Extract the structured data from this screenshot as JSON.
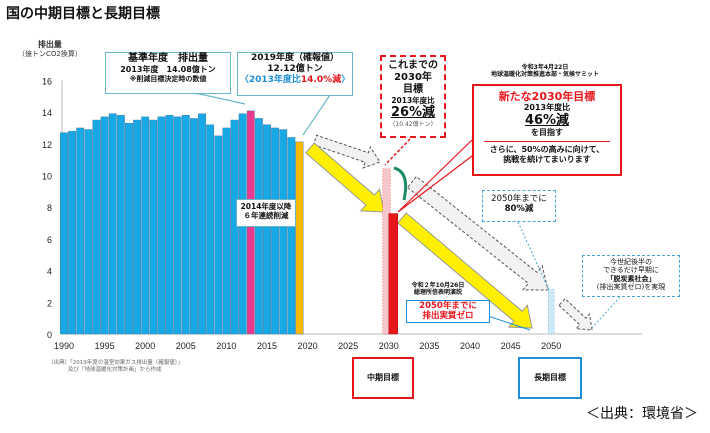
{
  "title": "国の中期目標と長期目標",
  "chart_data": {
    "type": "bar",
    "ylabel": "排出量",
    "ylabel_unit": "（億トンCO2換算）",
    "ylim": [
      0,
      16
    ],
    "yticks": [
      0,
      2,
      4,
      6,
      8,
      10,
      12,
      14,
      16
    ],
    "xticks": [
      1990,
      1995,
      2000,
      2005,
      2010,
      2015,
      2020,
      2025,
      2030,
      2035,
      2040,
      2045,
      2050
    ],
    "series": [
      {
        "name": "historical",
        "color": "#17a9e6",
        "x": [
          1990,
          1991,
          1992,
          1993,
          1994,
          1995,
          1996,
          1997,
          1998,
          1999,
          2000,
          2001,
          2002,
          2003,
          2004,
          2005,
          2006,
          2007,
          2008,
          2009,
          2010,
          2011,
          2012,
          2014,
          2015,
          2016,
          2017,
          2018
        ],
        "values": [
          12.7,
          12.8,
          13.0,
          12.9,
          13.5,
          13.7,
          13.9,
          13.8,
          13.3,
          13.5,
          13.7,
          13.5,
          13.7,
          13.8,
          13.7,
          13.8,
          13.6,
          13.9,
          13.2,
          12.5,
          13.0,
          13.5,
          13.9,
          13.6,
          13.2,
          13.0,
          12.9,
          12.4
        ]
      },
      {
        "name": "base year 2013",
        "color": "#e8388f",
        "x": [
          2013
        ],
        "values": [
          14.08
        ]
      },
      {
        "name": "2019 confirmed",
        "color": "#f6b800",
        "x": [
          2019
        ],
        "values": [
          12.12
        ]
      },
      {
        "name": "previous 2030 target",
        "color": "#f6c8cc",
        "x": [
          2030
        ],
        "values": [
          10.42
        ]
      },
      {
        "name": "new 2030 target",
        "color": "#e6161b",
        "x": [
          2030
        ],
        "values": [
          7.6
        ]
      },
      {
        "name": "2050 80% target",
        "color": "#cde9f7",
        "x": [
          2050
        ],
        "values": [
          2.8
        ]
      }
    ]
  },
  "callouts": {
    "base": {
      "l1": "基準年度　排出量",
      "l2": "2013年度　14.08億トン",
      "l3": "※削減目標決定時の数値"
    },
    "y2019": {
      "l1": "2019年度（確報値）",
      "l2": "12.12億トン",
      "l3a": "〈2013年度比",
      "l3b": "14.0%減",
      "l3c": "〉"
    },
    "streak": {
      "l1": "2014年度以降",
      "l2": "６年連続削減"
    },
    "old2030": {
      "l1": "これまでの",
      "l2": "2030年",
      "l3": "目標",
      "l4": "2013年度比",
      "l5": "26%減",
      "l6": "（10.42億トン）"
    },
    "summit_note": {
      "l1": "令和3年4月22日",
      "l2": "地球温暖化対策推進本部・気候サミット"
    },
    "new2030": {
      "h": "新たな2030年目標",
      "l1": "2013年度比",
      "l2": "46%減",
      "l3": "を目指す",
      "l4": "さらに、50%の高みに向けて、",
      "l5": "挑戦を続けてまいります"
    },
    "by2050_80": {
      "l1": "2050年までに",
      "l2": "80%減"
    },
    "carbon_neutral": {
      "l1": "今世紀後半の",
      "l2": "できるだけ早期に",
      "l3": "「脱炭素社会」",
      "l4": "(排出実質ゼロ)を実現"
    },
    "pm_note": {
      "l1": "令和２年10月26日",
      "l2": "総理所信表明演説"
    },
    "net_zero": {
      "l1": "2050年までに",
      "l2": "排出実質ゼロ"
    }
  },
  "labels": {
    "mid_term": "中期目標",
    "long_term": "長期目標"
  },
  "source_note": {
    "l1": "（出典）「2019年度の温室効果ガス排出量（確報値）」",
    "l2": "及び「地球温暖化対策計画」から作成"
  },
  "credit": "＜出典：環境省＞"
}
